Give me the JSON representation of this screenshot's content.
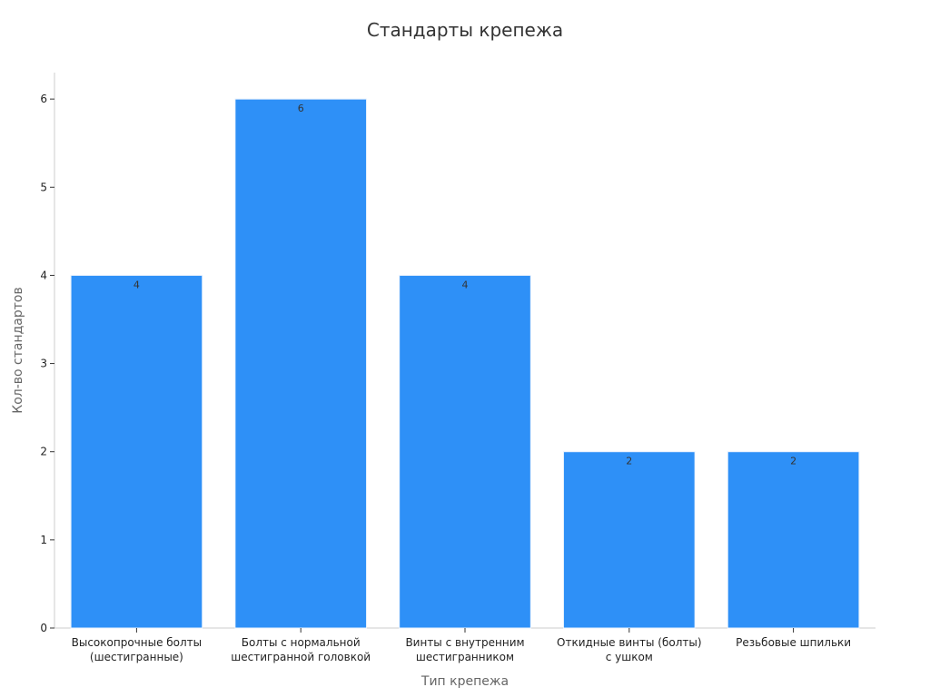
{
  "colors": {
    "bar": "#2e90f7",
    "axis": "#cccccc",
    "tick": "#333333"
  },
  "chart_data": {
    "type": "bar",
    "title": "Стандарты крепежа",
    "xlabel": "Тип крепежа",
    "ylabel": "Кол-во стандартов",
    "categories": [
      [
        "Высокопрочные болты",
        "(шестигранные)"
      ],
      [
        "Болты с нормальной",
        "шестигранной головкой"
      ],
      [
        "Винты с внутренним",
        "шестигранником"
      ],
      [
        "Откидные винты (болты)",
        "с ушком"
      ],
      [
        "Резьбовые шпильки"
      ]
    ],
    "values": [
      4,
      6,
      4,
      2,
      2
    ],
    "data_labels": [
      "4",
      "6",
      "4",
      "2",
      "2"
    ],
    "y_ticks": [
      0,
      1,
      2,
      3,
      4,
      5,
      6
    ],
    "y_tick_labels": [
      "0",
      "1",
      "2",
      "3",
      "4",
      "5",
      "6"
    ],
    "ylim": [
      0,
      6.3
    ],
    "grid": false,
    "legend": "none"
  }
}
